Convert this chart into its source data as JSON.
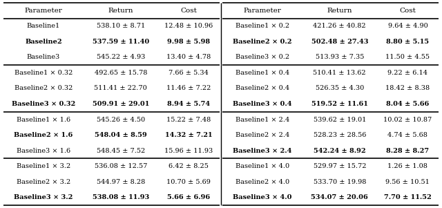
{
  "left_table": {
    "headers": [
      "Parameter",
      "Return",
      "Cost"
    ],
    "groups": [
      {
        "rows": [
          [
            "Baseline1",
            "538.10 ± 8.71",
            "12.48 ± 10.96"
          ],
          [
            "Baseline2",
            "537.59 ± 11.40",
            "9.98 ± 5.98"
          ],
          [
            "Baseline3",
            "545.22 ± 4.93",
            "13.40 ± 4.78"
          ]
        ],
        "bold": [
          [
            false,
            false,
            false
          ],
          [
            true,
            true,
            true
          ],
          [
            false,
            false,
            false
          ]
        ]
      },
      {
        "rows": [
          [
            "Baseline1 × 0.32",
            "492.65 ± 15.78",
            "7.66 ± 5.34"
          ],
          [
            "Baseline2 × 0.32",
            "511.41 ± 22.70",
            "11.46 ± 7.22"
          ],
          [
            "Baseline3 × 0.32",
            "509.91 ± 29.01",
            "8.94 ± 5.74"
          ]
        ],
        "bold": [
          [
            false,
            false,
            false
          ],
          [
            false,
            false,
            false
          ],
          [
            true,
            true,
            true
          ]
        ]
      },
      {
        "rows": [
          [
            "Baseline1 × 1.6",
            "545.26 ± 4.50",
            "15.22 ± 7.48"
          ],
          [
            "Baseline2 × 1.6",
            "548.04 ± 8.59",
            "14.32 ± 7.21"
          ],
          [
            "Baseline3 × 1.6",
            "548.45 ± 7.52",
            "15.96 ± 11.93"
          ]
        ],
        "bold": [
          [
            false,
            false,
            false
          ],
          [
            true,
            true,
            true
          ],
          [
            false,
            false,
            false
          ]
        ]
      },
      {
        "rows": [
          [
            "Baseline1 × 3.2",
            "536.08 ± 12.57",
            "6.42 ± 8.25"
          ],
          [
            "Baseline2 × 3.2",
            "544.97 ± 8.28",
            "10.70 ± 5.69"
          ],
          [
            "Baseline3 × 3.2",
            "538.08 ± 11.93",
            "5.66 ± 6.96"
          ]
        ],
        "bold": [
          [
            false,
            false,
            false
          ],
          [
            false,
            false,
            false
          ],
          [
            true,
            true,
            true
          ]
        ]
      }
    ]
  },
  "right_table": {
    "headers": [
      "Parameter",
      "Return",
      "Cost"
    ],
    "groups": [
      {
        "rows": [
          [
            "Baseline1 × 0.2",
            "421.26 ± 40.82",
            "9.64 ± 4.90"
          ],
          [
            "Baseline2 × 0.2",
            "502.48 ± 27.43",
            "8.80 ± 5.15"
          ],
          [
            "Baseline3 × 0.2",
            "513.93 ± 7.35",
            "11.50 ± 4.55"
          ]
        ],
        "bold": [
          [
            false,
            false,
            false
          ],
          [
            true,
            true,
            true
          ],
          [
            false,
            false,
            false
          ]
        ]
      },
      {
        "rows": [
          [
            "Baseline1 × 0.4",
            "510.41 ± 13.62",
            "9.22 ± 6.14"
          ],
          [
            "Baseline2 × 0.4",
            "526.35 ± 4.30",
            "18.42 ± 8.38"
          ],
          [
            "Baseline3 × 0.4",
            "519.52 ± 11.61",
            "8.04 ± 5.66"
          ]
        ],
        "bold": [
          [
            false,
            false,
            false
          ],
          [
            false,
            false,
            false
          ],
          [
            true,
            true,
            true
          ]
        ]
      },
      {
        "rows": [
          [
            "Baseline1 × 2.4",
            "539.62 ± 19.01",
            "10.02 ± 10.87"
          ],
          [
            "Baseline2 × 2.4",
            "528.23 ± 28.56",
            "4.74 ± 5.68"
          ],
          [
            "Baseline3 × 2.4",
            "542.24 ± 8.92",
            "8.28 ± 8.27"
          ]
        ],
        "bold": [
          [
            false,
            false,
            false
          ],
          [
            false,
            false,
            false
          ],
          [
            true,
            true,
            true
          ]
        ]
      },
      {
        "rows": [
          [
            "Baseline1 × 4.0",
            "529.97 ± 15.72",
            "1.26 ± 1.08"
          ],
          [
            "Baseline2 × 4.0",
            "533.70 ± 19.98",
            "9.56 ± 10.51"
          ],
          [
            "Baseline3 × 4.0",
            "534.07 ± 20.06",
            "7.70 ± 11.52"
          ]
        ],
        "bold": [
          [
            false,
            false,
            false
          ],
          [
            false,
            false,
            false
          ],
          [
            true,
            true,
            true
          ]
        ]
      }
    ]
  },
  "font_size": 7.0,
  "header_font_size": 7.5,
  "background_color": "#ffffff",
  "line_color": "#000000",
  "thick_line_lw": 1.2,
  "thin_line_lw": 0.6
}
